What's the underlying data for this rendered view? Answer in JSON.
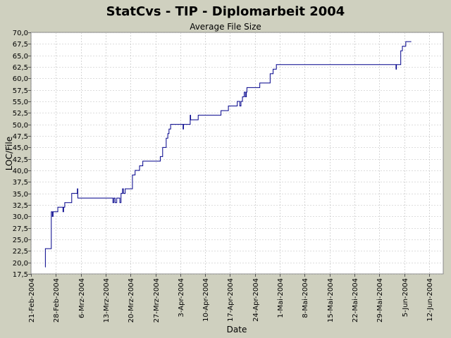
{
  "chart_data": {
    "type": "line",
    "title": "StatCvs - TIP - Diplomarbeit 2004",
    "subtitle": "Average File Size",
    "xlabel": "Date",
    "ylabel": "LOC/File",
    "xlim": [
      "2004-02-21",
      "2004-06-16"
    ],
    "ylim": [
      17.5,
      70.0
    ],
    "grid": true,
    "y_ticks": [
      "17,5",
      "20,0",
      "22,5",
      "25,0",
      "27,5",
      "30,0",
      "32,5",
      "35,0",
      "37,5",
      "40,0",
      "42,5",
      "45,0",
      "47,5",
      "50,0",
      "52,5",
      "55,0",
      "57,5",
      "60,0",
      "62,5",
      "65,0",
      "67,5",
      "70,0"
    ],
    "x_ticks": [
      {
        "date": "2004-02-21",
        "label": "21-Feb-2004"
      },
      {
        "date": "2004-02-28",
        "label": "28-Feb-2004"
      },
      {
        "date": "2004-03-06",
        "label": "6-Mrz-2004"
      },
      {
        "date": "2004-03-13",
        "label": "13-Mrz-2004"
      },
      {
        "date": "2004-03-20",
        "label": "20-Mrz-2004"
      },
      {
        "date": "2004-03-27",
        "label": "27-Mrz-2004"
      },
      {
        "date": "2004-04-03",
        "label": "3-Apr-2004"
      },
      {
        "date": "2004-04-10",
        "label": "10-Apr-2004"
      },
      {
        "date": "2004-04-17",
        "label": "17-Apr-2004"
      },
      {
        "date": "2004-04-24",
        "label": "24-Apr-2004"
      },
      {
        "date": "2004-05-01",
        "label": "1-Mai-2004"
      },
      {
        "date": "2004-05-08",
        "label": "8-Mai-2004"
      },
      {
        "date": "2004-05-15",
        "label": "15-Mai-2004"
      },
      {
        "date": "2004-05-22",
        "label": "22-Mai-2004"
      },
      {
        "date": "2004-05-29",
        "label": "29-Mai-2004"
      },
      {
        "date": "2004-06-05",
        "label": "5-Jun-2004"
      },
      {
        "date": "2004-06-12",
        "label": "12-Jun-2004"
      }
    ],
    "series": [
      {
        "color": "#00008b",
        "step": true,
        "points": [
          [
            "2004-02-25 00:00",
            19.0
          ],
          [
            "2004-02-25 01:00",
            23.0
          ],
          [
            "2004-02-26 16:00",
            23.0
          ],
          [
            "2004-02-26 17:00",
            31.0
          ],
          [
            "2004-02-27 00:00",
            30.0
          ],
          [
            "2004-02-27 05:00",
            31.0
          ],
          [
            "2004-02-28 12:00",
            31.0
          ],
          [
            "2004-02-28 13:00",
            32.0
          ],
          [
            "2004-03-01 00:00",
            31.0
          ],
          [
            "2004-03-01 04:00",
            32.0
          ],
          [
            "2004-03-01 12:00",
            33.0
          ],
          [
            "2004-03-03 10:00",
            33.0
          ],
          [
            "2004-03-03 11:00",
            35.0
          ],
          [
            "2004-03-05 00:00",
            35.0
          ],
          [
            "2004-03-05 01:00",
            36.0
          ],
          [
            "2004-03-05 04:00",
            34.0
          ],
          [
            "2004-03-15 00:00",
            34.0
          ],
          [
            "2004-03-15 01:00",
            33.0
          ],
          [
            "2004-03-15 08:00",
            34.0
          ],
          [
            "2004-03-15 16:00",
            33.0
          ],
          [
            "2004-03-16 00:00",
            33.0
          ],
          [
            "2004-03-16 03:00",
            34.0
          ],
          [
            "2004-03-17 00:00",
            33.0
          ],
          [
            "2004-03-17 08:00",
            35.0
          ],
          [
            "2004-03-17 18:00",
            36.0
          ],
          [
            "2004-03-18 00:00",
            35.0
          ],
          [
            "2004-03-18 12:00",
            36.0
          ],
          [
            "2004-03-20 12:00",
            36.0
          ],
          [
            "2004-03-20 13:00",
            39.0
          ],
          [
            "2004-03-21 06:00",
            39.0
          ],
          [
            "2004-03-21 07:00",
            40.0
          ],
          [
            "2004-03-22 12:00",
            40.0
          ],
          [
            "2004-03-22 13:00",
            41.0
          ],
          [
            "2004-03-23 10:00",
            41.0
          ],
          [
            "2004-03-23 11:00",
            42.0
          ],
          [
            "2004-03-28 08:00",
            42.0
          ],
          [
            "2004-03-28 09:00",
            43.0
          ],
          [
            "2004-03-29 00:00",
            43.0
          ],
          [
            "2004-03-29 01:00",
            45.0
          ],
          [
            "2004-03-30 00:00",
            45.0
          ],
          [
            "2004-03-30 01:00",
            47.0
          ],
          [
            "2004-03-30 12:00",
            48.0
          ],
          [
            "2004-03-30 20:00",
            49.0
          ],
          [
            "2004-03-31 06:00",
            49.0
          ],
          [
            "2004-03-31 07:00",
            50.0
          ],
          [
            "2004-04-03 18:00",
            50.0
          ],
          [
            "2004-04-03 19:00",
            49.0
          ],
          [
            "2004-04-03 22:00",
            50.0
          ],
          [
            "2004-04-05 18:00",
            50.0
          ],
          [
            "2004-04-05 19:00",
            52.0
          ],
          [
            "2004-04-05 22:00",
            51.0
          ],
          [
            "2004-04-08 00:00",
            51.0
          ],
          [
            "2004-04-08 01:00",
            52.0
          ],
          [
            "2004-04-14 10:00",
            52.0
          ],
          [
            "2004-04-14 11:00",
            53.0
          ],
          [
            "2004-04-16 12:00",
            53.0
          ],
          [
            "2004-04-16 13:00",
            54.0
          ],
          [
            "2004-04-19 00:00",
            54.0
          ],
          [
            "2004-04-19 01:00",
            55.0
          ],
          [
            "2004-04-19 18:00",
            54.0
          ],
          [
            "2004-04-20 02:00",
            55.0
          ],
          [
            "2004-04-20 12:00",
            56.0
          ],
          [
            "2004-04-21 00:00",
            57.0
          ],
          [
            "2004-04-21 08:00",
            56.0
          ],
          [
            "2004-04-21 14:00",
            57.0
          ],
          [
            "2004-04-21 18:00",
            58.0
          ],
          [
            "2004-04-25 08:00",
            58.0
          ],
          [
            "2004-04-25 09:00",
            59.0
          ],
          [
            "2004-04-28 06:00",
            59.0
          ],
          [
            "2004-04-28 07:00",
            61.0
          ],
          [
            "2004-04-29 02:00",
            61.0
          ],
          [
            "2004-04-29 03:00",
            62.0
          ],
          [
            "2004-04-30 00:00",
            62.0
          ],
          [
            "2004-04-30 01:00",
            63.0
          ],
          [
            "2004-06-02 16:00",
            63.0
          ],
          [
            "2004-06-02 17:00",
            62.0
          ],
          [
            "2004-06-02 20:00",
            63.0
          ],
          [
            "2004-06-04 00:00",
            63.0
          ],
          [
            "2004-06-04 01:00",
            66.0
          ],
          [
            "2004-06-04 12:00",
            67.0
          ],
          [
            "2004-06-05 10:00",
            67.0
          ],
          [
            "2004-06-05 11:00",
            68.0
          ],
          [
            "2004-06-07 00:00",
            68.0
          ]
        ]
      }
    ]
  },
  "colors": {
    "page_background": "#cfd0bf",
    "plot_background": "#ffffff",
    "grid": "#bbbbbb",
    "line": "#00008b"
  }
}
